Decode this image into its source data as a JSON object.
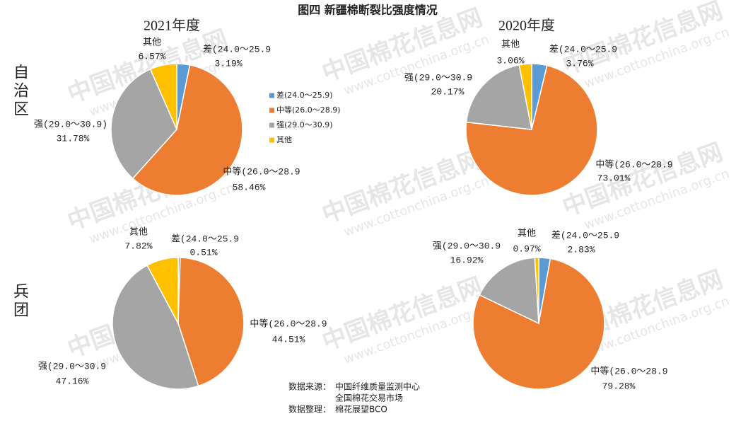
{
  "title": "图四  新疆棉断裂比强度情况",
  "columns": [
    "2021年度",
    "2020年度"
  ],
  "rows": [
    "自治区",
    "兵团"
  ],
  "legend": [
    "差(24.0～25.9)",
    "中等(26.0～28.9)",
    "强(29.0～30.9)",
    "其他"
  ],
  "watermark": {
    "name": "中国棉花信息网",
    "url": "www.cottonchina.org.cn"
  },
  "source": {
    "label": "数据来源：",
    "lines": [
      "中国纤维质量监测中心",
      "全国棉花交易市场"
    ],
    "editor_label": "数据整理：",
    "editor": "棉花展望BCO"
  },
  "chart_data": [
    {
      "type": "pie",
      "categories": [
        "差(24.0～25.9",
        "中等(26.0～28.9",
        "强(29.0～30.9)",
        "其他"
      ],
      "values": [
        3.19,
        58.46,
        31.78,
        6.57
      ],
      "value_labels": [
        "3.19%",
        "58.46%",
        "31.78%",
        "6.57%"
      ],
      "colors": [
        "#5b9bd5",
        "#ed7d31",
        "#a5a5a5",
        "#ffc000"
      ]
    },
    {
      "type": "pie",
      "categories": [
        "差(24.0～25.9",
        "中等(26.0～28.9",
        "强(29.0～30.9",
        "其他"
      ],
      "values": [
        3.76,
        73.01,
        20.17,
        3.06
      ],
      "value_labels": [
        "3.76%",
        "73.01%",
        "20.17%",
        "3.06%"
      ],
      "colors": [
        "#5b9bd5",
        "#ed7d31",
        "#a5a5a5",
        "#ffc000"
      ]
    },
    {
      "type": "pie",
      "categories": [
        "差(24.0～25.9",
        "中等(26.0～28.9",
        "强(29.0～30.9",
        "其他"
      ],
      "values": [
        0.51,
        44.51,
        47.16,
        7.82
      ],
      "value_labels": [
        "0.51%",
        "44.51%",
        "47.16%",
        "7.82%"
      ],
      "colors": [
        "#5b9bd5",
        "#ed7d31",
        "#a5a5a5",
        "#ffc000"
      ]
    },
    {
      "type": "pie",
      "categories": [
        "差(24.0～25.9",
        "中等(26.0～28.9",
        "强(29.0～30.9",
        "其他"
      ],
      "values": [
        2.83,
        79.28,
        16.92,
        0.97
      ],
      "value_labels": [
        "2.83%",
        "79.28%",
        "16.92%",
        "0.97%"
      ],
      "colors": [
        "#5b9bd5",
        "#ed7d31",
        "#a5a5a5",
        "#ffc000"
      ]
    }
  ]
}
